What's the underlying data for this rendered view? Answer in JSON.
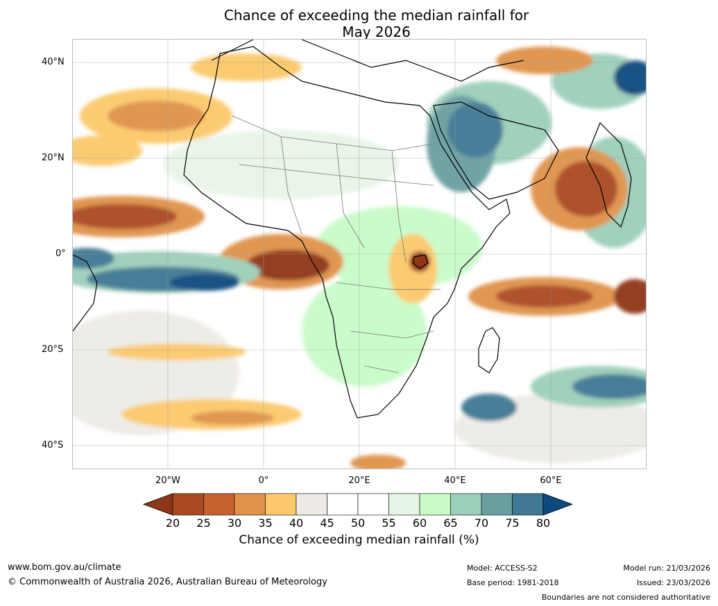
{
  "title": {
    "line1": "Chance of exceeding the median rainfall for",
    "line2": "May 2026"
  },
  "axes": {
    "lat_labels": [
      "40°N",
      "20°N",
      "0°",
      "20°S",
      "40°S"
    ],
    "lon_labels": [
      "20°W",
      "0°",
      "20°E",
      "40°E",
      "60°E"
    ]
  },
  "colorbar": {
    "ticks": [
      "20",
      "25",
      "30",
      "35",
      "40",
      "45",
      "50",
      "55",
      "60",
      "65",
      "70",
      "75",
      "80"
    ],
    "colors": [
      "#8f3518",
      "#a94a22",
      "#c7622f",
      "#df9248",
      "#fbc96b",
      "#eeebe6",
      "#ffffff",
      "#ffffff",
      "#e7f5e7",
      "#c8fbc8",
      "#9bcfb9",
      "#6a9fa2",
      "#417893",
      "#0c4a7e"
    ],
    "label": "Chance of exceeding median rainfall (%)"
  },
  "footer": {
    "website": "www.bom.gov.au/climate",
    "copyright": "© Commonwealth of Australia 2026, Australian Bureau of Meteorology",
    "model": "Model: ACCESS-S2",
    "base_period": "Base period: 1981-2018",
    "model_run": "Model run: 21/03/2026",
    "issued": "Issued: 23/03/2026",
    "disclaimer": "Boundaries are not considered authoritative"
  }
}
